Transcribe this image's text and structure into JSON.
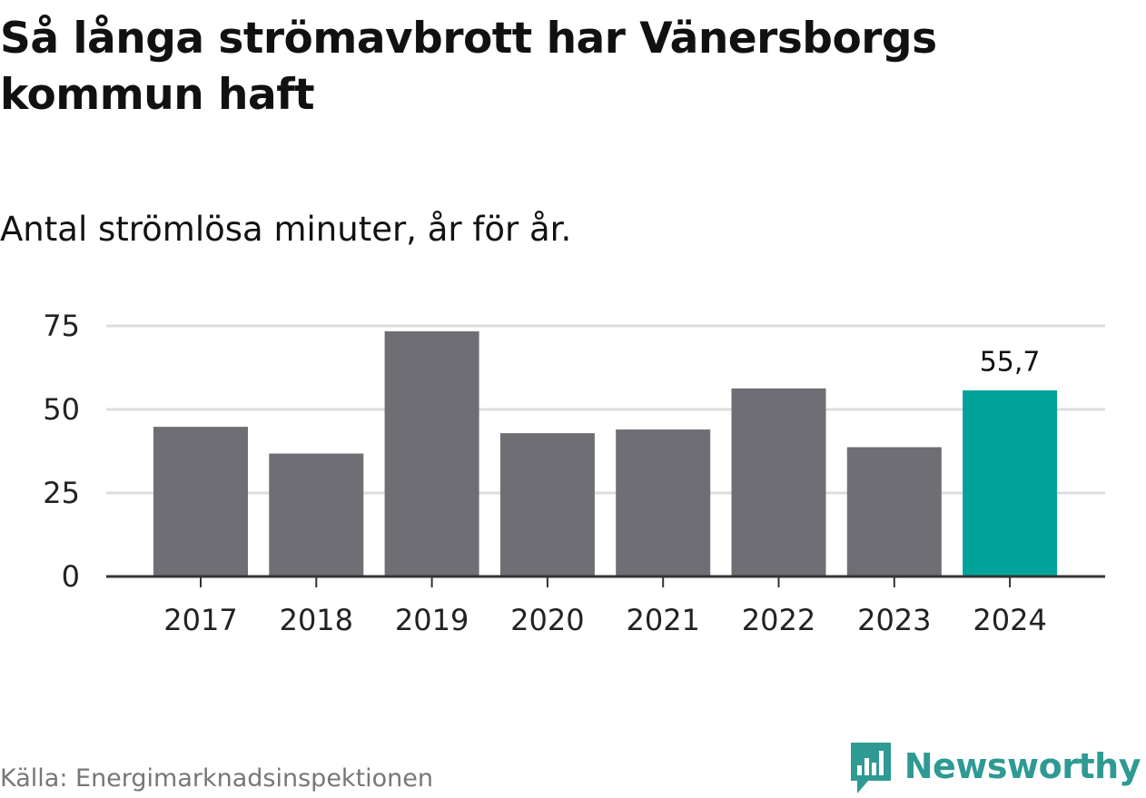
{
  "title": "Så långa strömavbrott har Vänersborgs kommun haft",
  "subtitle": "Antal strömlösa minuter, år för år.",
  "source": "Källa: Energimarknadsinspektionen",
  "brand": "Newsworthy",
  "colors": {
    "bar": "#6f6e74",
    "highlight": "#00a39a",
    "grid": "#dddddd",
    "axis": "#333333",
    "brand": "#2e9a93"
  },
  "chart_data": {
    "type": "bar",
    "title": "Så långa strömavbrott har Vänersborgs kommun haft",
    "subtitle": "Antal strömlösa minuter, år för år.",
    "xlabel": "",
    "ylabel": "",
    "categories": [
      "2017",
      "2018",
      "2019",
      "2020",
      "2021",
      "2022",
      "2023",
      "2024"
    ],
    "values": [
      44.8,
      36.8,
      73.4,
      42.9,
      44.0,
      56.3,
      38.7,
      55.7
    ],
    "ylim": [
      0,
      75
    ],
    "yticks": [
      0,
      25,
      50,
      75
    ],
    "ytick_labels": [
      "0",
      "25",
      "50",
      "75"
    ],
    "grid": true,
    "highlight_index": 7,
    "annotations": [
      {
        "category": "2024",
        "label": "55,7"
      }
    ]
  }
}
